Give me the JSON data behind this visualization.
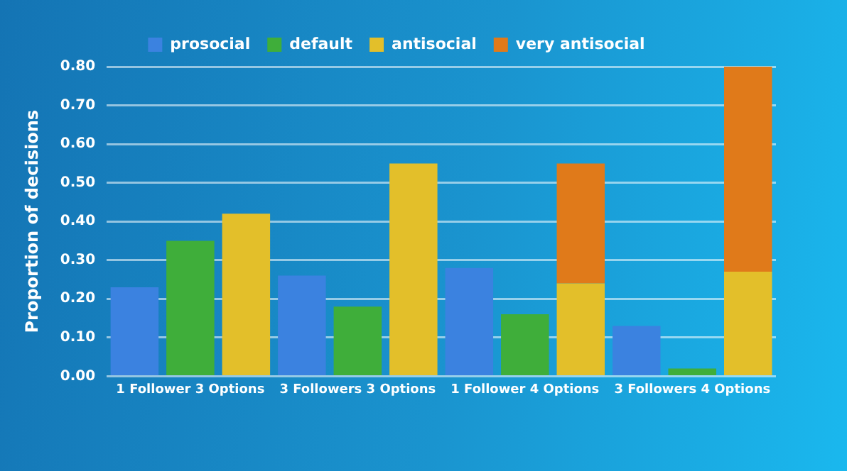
{
  "chart_data": {
    "type": "bar",
    "ylabel": "Proportion of decisions",
    "categories": [
      null,
      "1 Follower 3 Options",
      null,
      null,
      "3 Followers 3 Options",
      null,
      null,
      "1 Follower 4 Options",
      null,
      null,
      "3 Followers 4 Options",
      null
    ],
    "series": [
      {
        "name": "prosocial",
        "color": "#3b82e0",
        "values": [
          0.23,
          null,
          null,
          0.26,
          null,
          null,
          0.28,
          null,
          null,
          0.13,
          null,
          null
        ]
      },
      {
        "name": "default",
        "color": "#3fae3a",
        "values": [
          null,
          0.35,
          null,
          null,
          0.18,
          null,
          null,
          0.16,
          null,
          null,
          0.02,
          null
        ]
      },
      {
        "name": "antisocial",
        "color": "#e3bf2a",
        "values": [
          null,
          null,
          0.42,
          null,
          null,
          0.55,
          null,
          null,
          0.24,
          null,
          null,
          0.27
        ]
      },
      {
        "name": "very antisocial",
        "color": "#e07a1a",
        "values": [
          null,
          null,
          null,
          null,
          null,
          null,
          null,
          null,
          0.31,
          null,
          null,
          0.53
        ]
      }
    ],
    "stacked": true,
    "ylim": [
      0,
      0.8
    ],
    "yticks": [
      {
        "value": 0,
        "label": "0.00"
      },
      {
        "value": 0.1,
        "label": "0.10"
      },
      {
        "value": 0.2,
        "label": "0.20"
      },
      {
        "value": 0.3,
        "label": "0.30"
      },
      {
        "value": 0.4,
        "label": "0.40"
      },
      {
        "value": 0.5,
        "label": "0.50"
      },
      {
        "value": 0.6,
        "label": "0.60"
      },
      {
        "value": 0.7,
        "label": "0.70"
      },
      {
        "value": 0.8,
        "label": "0.80"
      }
    ],
    "grid": "y",
    "legend": "top"
  }
}
